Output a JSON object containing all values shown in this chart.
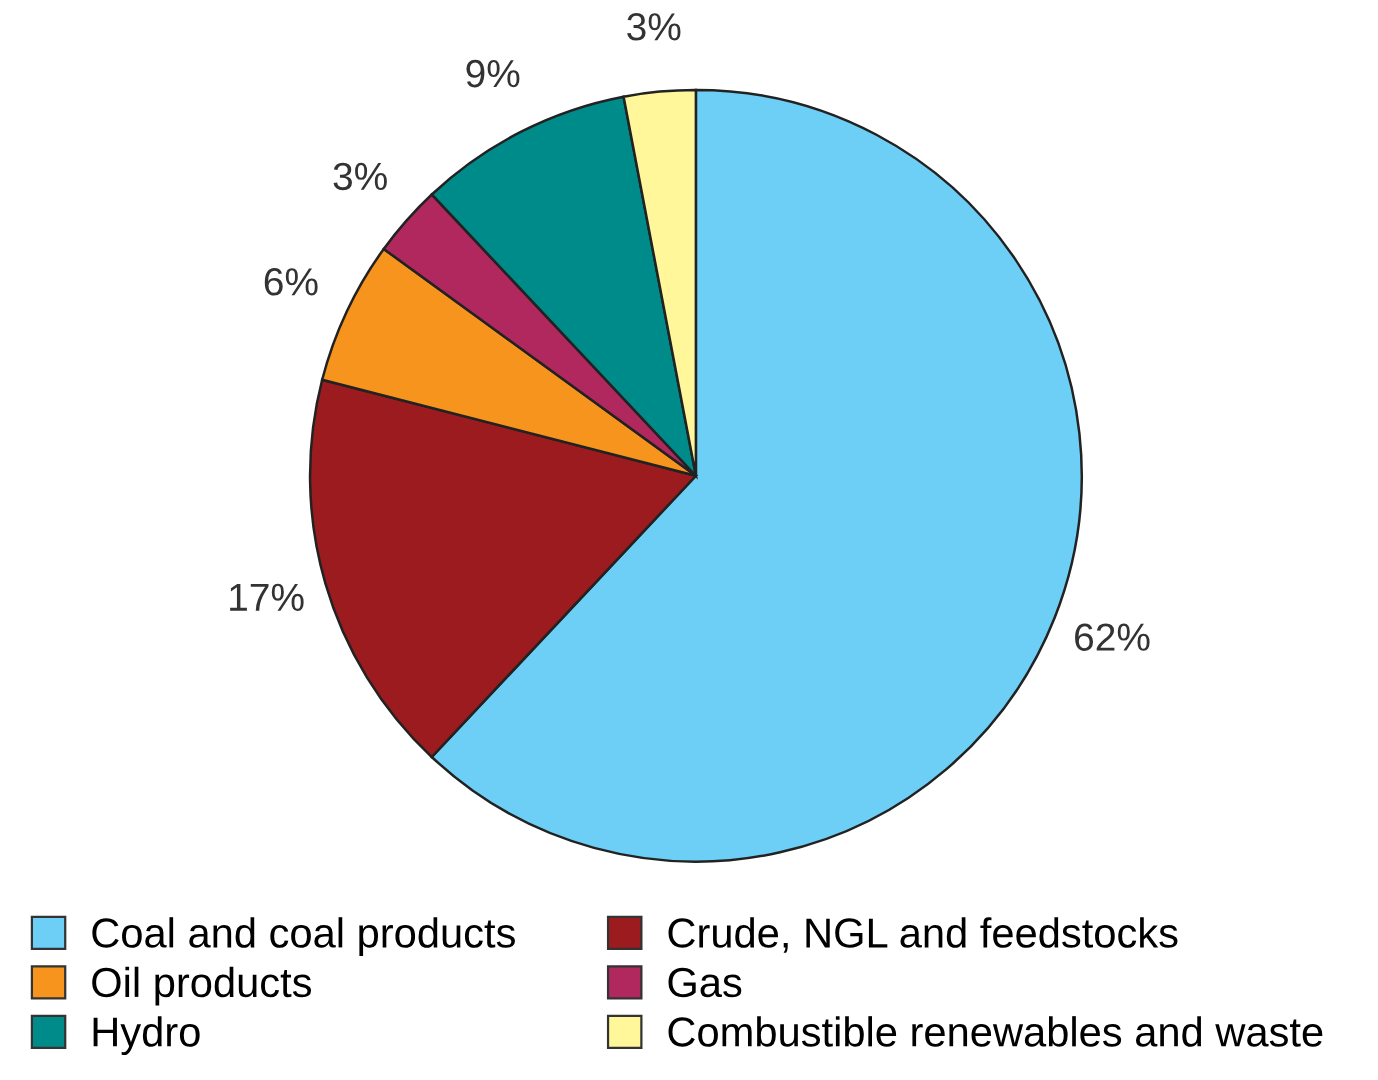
{
  "chart_data": {
    "type": "pie",
    "categories": [
      "Coal and coal products",
      "Crude, NGL and feedstocks",
      "Oil products",
      "Gas",
      "Hydro",
      "Combustible renewables and waste"
    ],
    "values": [
      62,
      17,
      6,
      3,
      9,
      3
    ],
    "colors": [
      "#6dcff6",
      "#9b1b1e",
      "#f7941d",
      "#b0285e",
      "#008b8b",
      "#fff799"
    ],
    "value_labels": [
      "62%",
      "17%",
      "6%",
      "3%",
      "9%",
      "3%"
    ],
    "legend": "bottom"
  }
}
